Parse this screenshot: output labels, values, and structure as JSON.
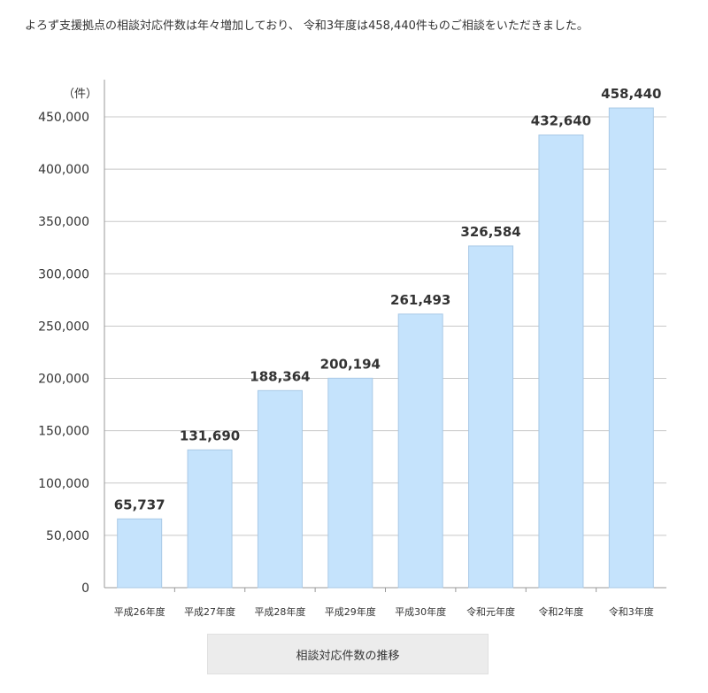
{
  "intro_text": "よろず支援拠点の相談対応件数は年々増加しており、 令和3年度は458,440件ものご相談をいただきました。",
  "caption": "相談対応件数の推移",
  "colors": {
    "bar_fill": "#c5e3fc",
    "bar_stroke": "#a9c9e6",
    "grid": "#c8c8c8",
    "axis": "#999999"
  },
  "chart_data": {
    "type": "bar",
    "unit_label": "（件）",
    "categories": [
      "平成26年度",
      "平成27年度",
      "平成28年度",
      "平成29年度",
      "平成30年度",
      "令和元年度",
      "令和2年度",
      "令和3年度"
    ],
    "values": [
      65737,
      131690,
      188364,
      200194,
      261493,
      326584,
      432640,
      458440
    ],
    "value_labels": [
      "65,737",
      "131,690",
      "188,364",
      "200,194",
      "261,493",
      "326,584",
      "432,640",
      "458,440"
    ],
    "y_ticks": [
      0,
      50000,
      100000,
      150000,
      200000,
      250000,
      300000,
      350000,
      400000,
      450000
    ],
    "y_tick_labels": [
      "0",
      "50,000",
      "100,000",
      "150,000",
      "200,000",
      "250,000",
      "300,000",
      "350,000",
      "400,000",
      "450,000"
    ],
    "ylim": [
      0,
      450000
    ],
    "grid": true
  }
}
